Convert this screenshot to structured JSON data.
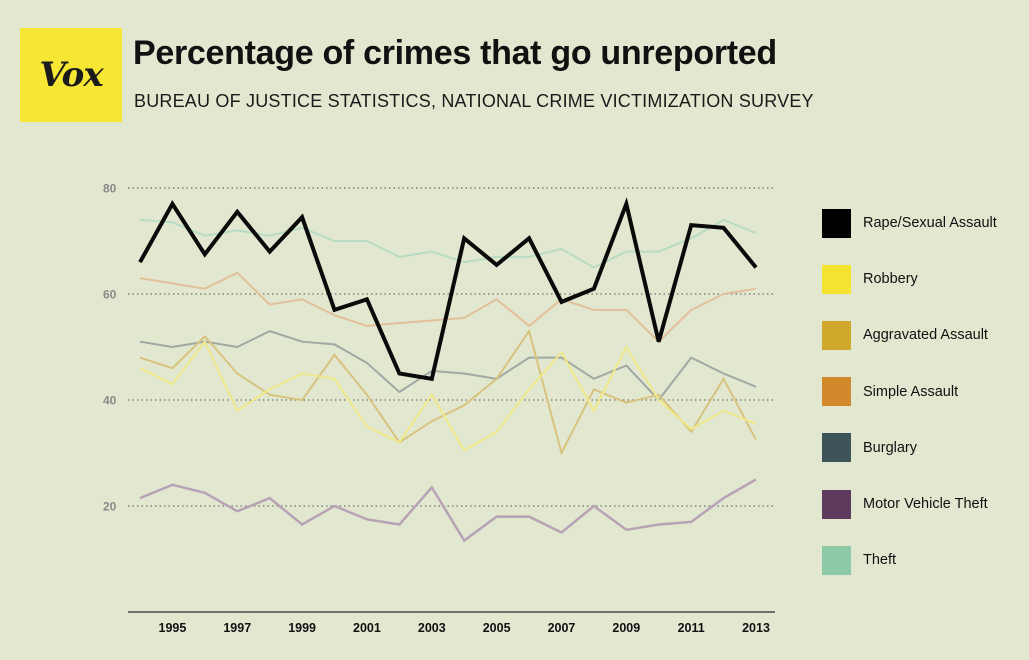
{
  "header": {
    "logo_text": "Vox",
    "title": "Percentage of crimes that go unreported",
    "subtitle": "BUREAU OF JUSTICE STATISTICS, NATIONAL CRIME VICTIMIZATION SURVEY"
  },
  "colors": {
    "background": "#e2e8d0",
    "logo": "#f5e734"
  },
  "chart_data": {
    "type": "line",
    "title": "Percentage of crimes that go unreported",
    "subtitle": "BUREAU OF JUSTICE STATISTICS, NATIONAL CRIME VICTIMIZATION SURVEY",
    "xlabel": "",
    "ylabel": "",
    "ylim": [
      0,
      80
    ],
    "yticks": [
      20,
      40,
      60,
      80
    ],
    "xlim": [
      1994,
      2013
    ],
    "xticks": [
      1995,
      1997,
      1999,
      2001,
      2003,
      2005,
      2007,
      2009,
      2011,
      2013
    ],
    "grid": "horizontal dotted",
    "legend_position": "right",
    "x": [
      1994,
      1995,
      1996,
      1997,
      1998,
      1999,
      2000,
      2001,
      2002,
      2003,
      2004,
      2005,
      2006,
      2007,
      2008,
      2009,
      2010,
      2011,
      2012,
      2013
    ],
    "series": [
      {
        "name": "Theft",
        "color": "#8ecaa8",
        "line_color": "#b7dcc3",
        "width": 2,
        "values": [
          74,
          73.5,
          71,
          72,
          71,
          72.5,
          70,
          70,
          67,
          68,
          66,
          67,
          67,
          68.5,
          65,
          68,
          68,
          70.5,
          74,
          71.5
        ]
      },
      {
        "name": "Motor Vehicle Theft",
        "color": "#5e3a5f",
        "line_color": "#b7a3b5",
        "width": 2.5,
        "values": [
          21.5,
          24,
          22.5,
          19,
          21.5,
          16.5,
          20,
          17.5,
          16.5,
          23.5,
          13.5,
          18,
          18,
          15,
          20,
          15.5,
          16.5,
          17,
          21.5,
          25
        ]
      },
      {
        "name": "Burglary",
        "color": "#3d5459",
        "line_color": "#9fa8a3",
        "width": 2,
        "values": [
          51,
          50,
          51,
          50,
          53,
          51,
          50.5,
          47,
          41.5,
          45.5,
          45,
          44,
          48,
          48,
          44,
          46.5,
          40,
          48,
          45,
          42.5
        ]
      },
      {
        "name": "Simple Assault",
        "color": "#d4882c",
        "line_color": "#e3bf9a",
        "width": 2,
        "values": [
          63,
          62,
          61,
          64,
          58,
          59,
          56,
          54,
          54.5,
          55,
          55.5,
          59,
          54,
          59,
          57,
          57,
          51,
          57,
          60,
          61
        ]
      },
      {
        "name": "Aggravated Assault",
        "color": "#cfa82c",
        "line_color": "#d8c37e",
        "width": 2,
        "values": [
          48,
          46,
          52,
          45,
          41,
          40,
          48.5,
          41,
          32,
          36,
          39,
          44,
          53,
          30,
          42,
          39.5,
          41,
          34,
          44,
          32.5
        ]
      },
      {
        "name": "Robbery",
        "color": "#f4e430",
        "line_color": "#efe88a",
        "width": 2,
        "values": [
          46,
          43,
          51,
          38,
          42,
          45,
          44,
          35,
          32,
          41,
          30.5,
          34,
          42,
          49,
          38,
          50,
          40,
          34.5,
          38,
          35.5
        ]
      },
      {
        "name": "Rape/Sexual Assault",
        "color": "#000000",
        "line_color": "#0a0a0a",
        "width": 4,
        "values": [
          66,
          77,
          67.5,
          75.5,
          68,
          74.5,
          57,
          59,
          45,
          44,
          70.5,
          65.5,
          70.5,
          58.5,
          61,
          77,
          51,
          73,
          72.5,
          65
        ]
      }
    ]
  }
}
